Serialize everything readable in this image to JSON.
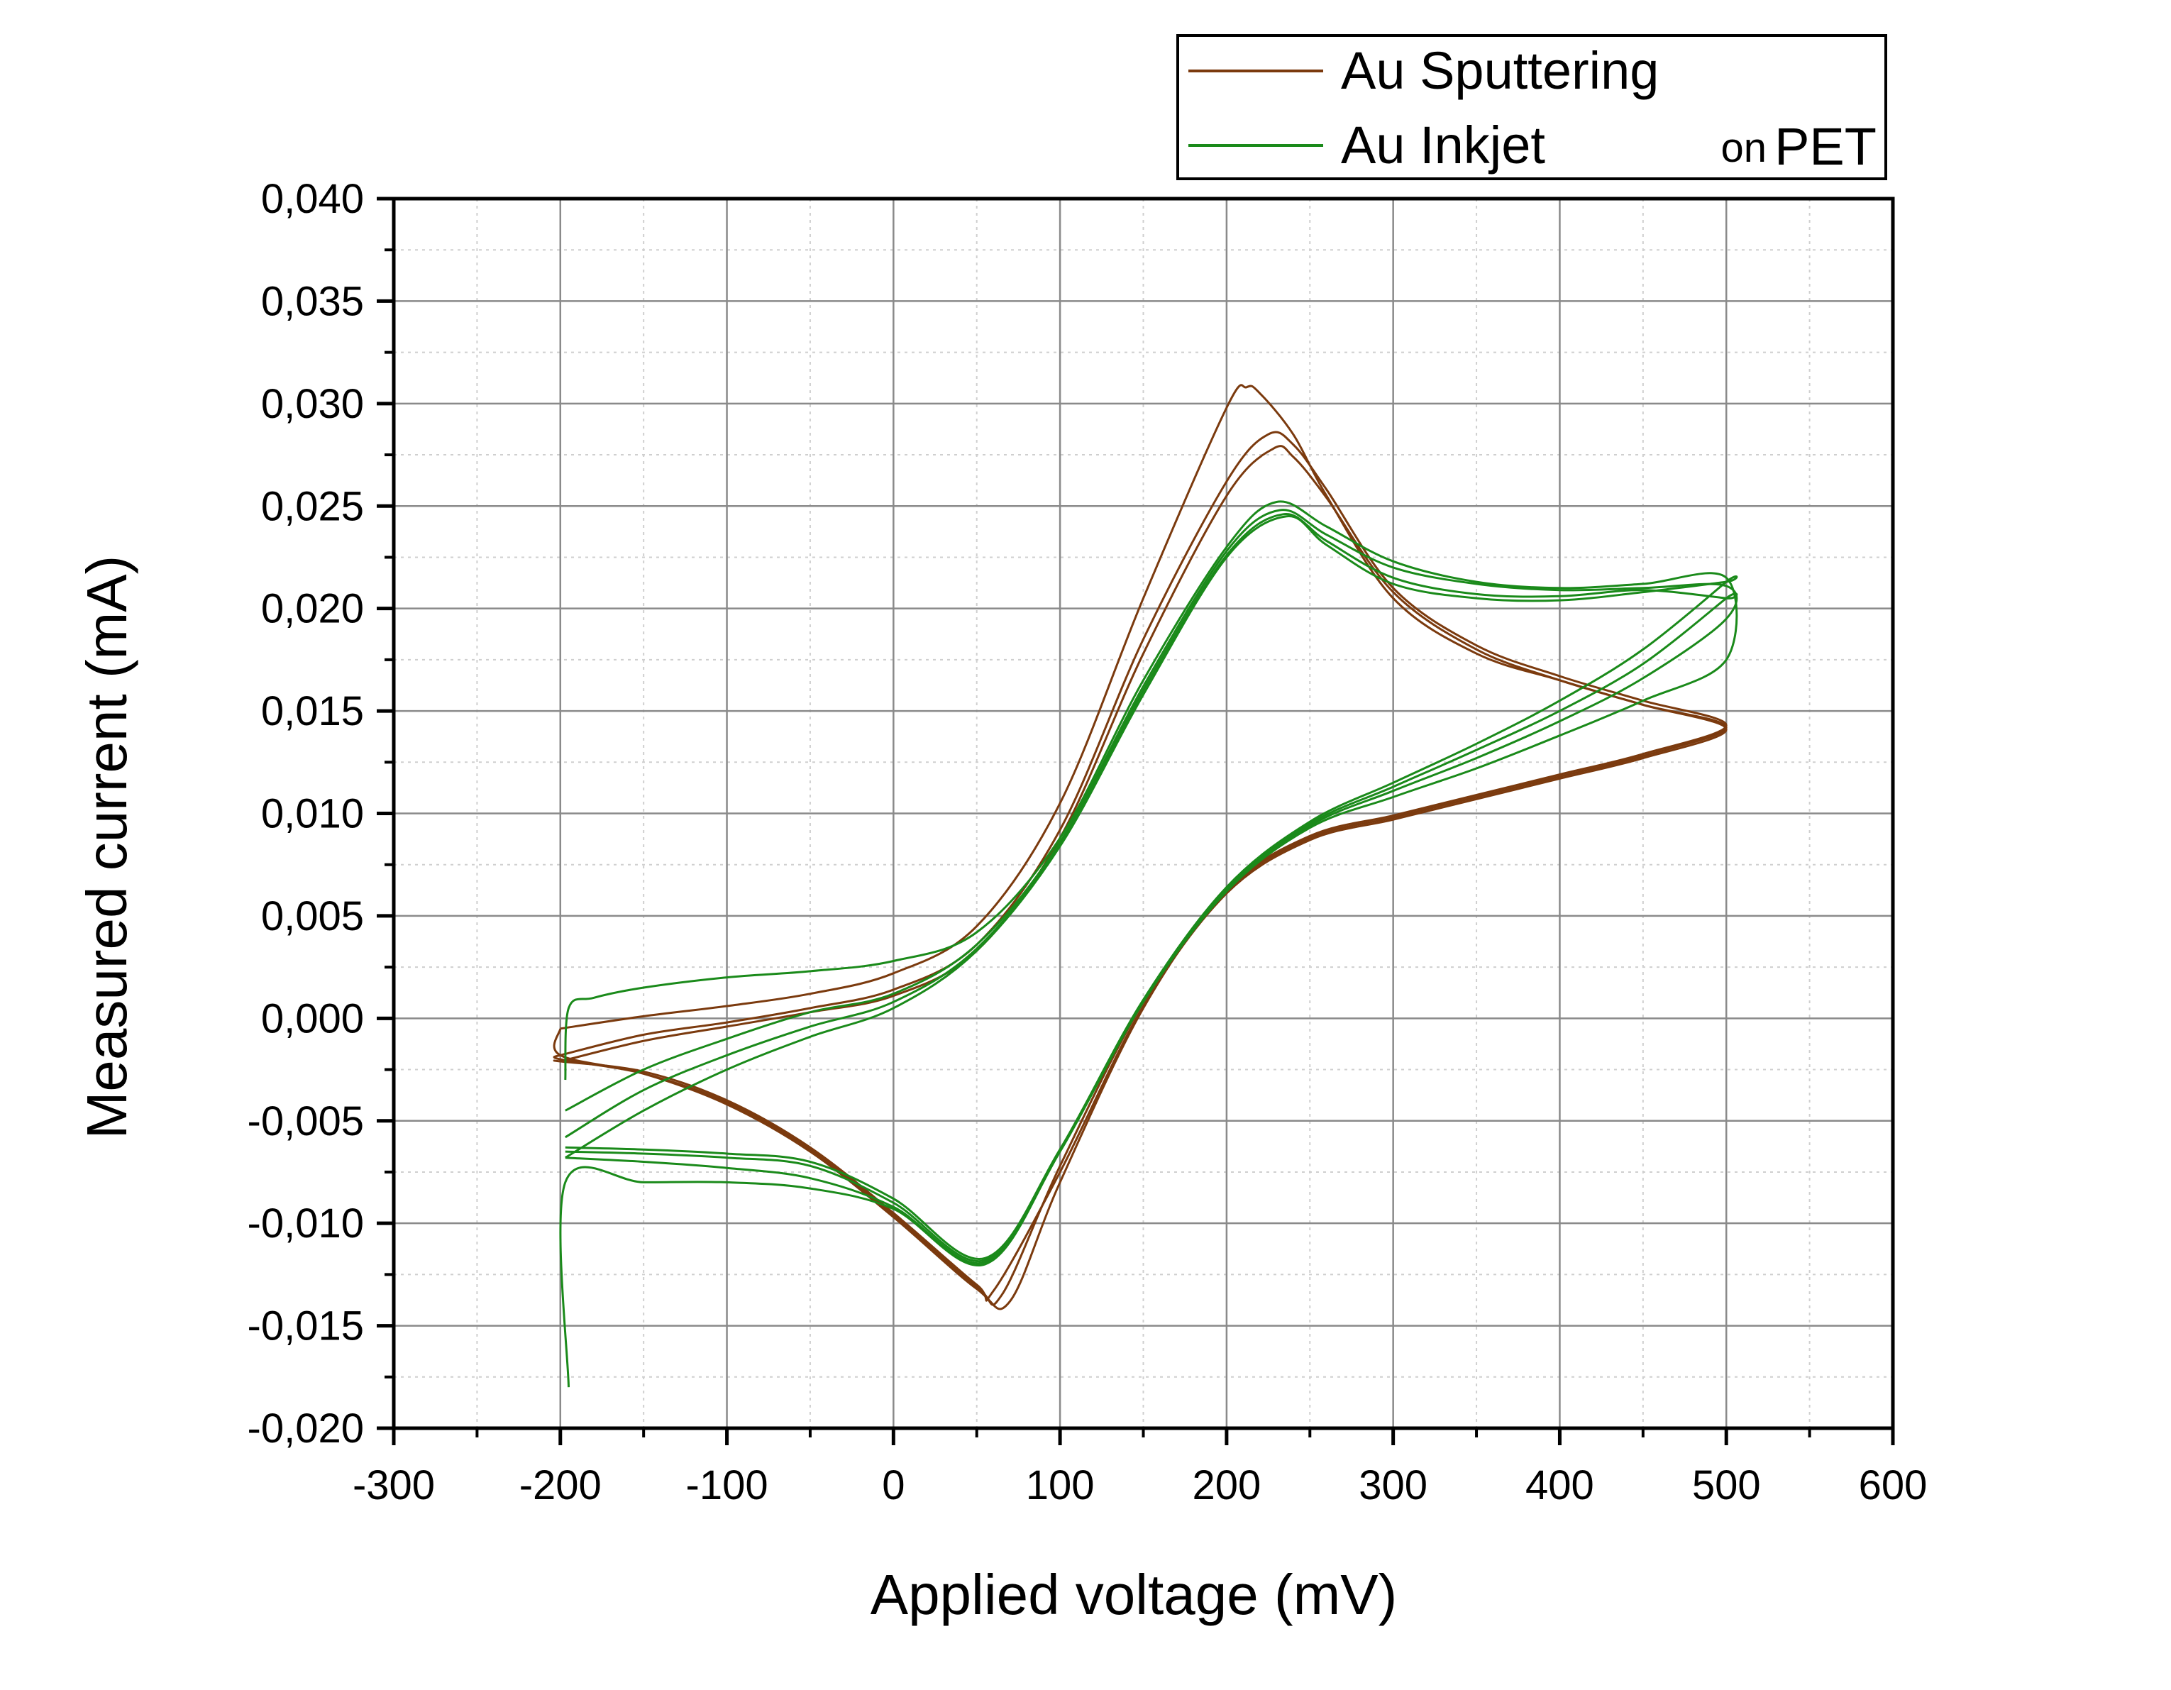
{
  "chart_data": {
    "type": "line",
    "xlabel": "Applied voltage (mV)",
    "ylabel": "Measured current (mA)",
    "xlim": [
      -300,
      600
    ],
    "ylim": [
      -0.02,
      0.04
    ],
    "x_ticks": [
      -300,
      -200,
      -100,
      0,
      100,
      200,
      300,
      400,
      500,
      600
    ],
    "x_tick_labels": [
      "-300",
      "-200",
      "-100",
      "0",
      "100",
      "200",
      "300",
      "400",
      "500",
      "600"
    ],
    "y_ticks": [
      -0.02,
      -0.015,
      -0.01,
      -0.005,
      0,
      0.005,
      0.01,
      0.015,
      0.02,
      0.025,
      0.03,
      0.035,
      0.04
    ],
    "y_tick_labels": [
      "-0,020",
      "-0,015",
      "-0,010",
      "-0,005",
      "0,000",
      "0,005",
      "0,010",
      "0,015",
      "0,020",
      "0,025",
      "0,030",
      "0,035",
      "0,040"
    ],
    "grid": true,
    "legend_position": "top-right",
    "legend_suffix": "on PET",
    "series": [
      {
        "name": "Au Sputtering",
        "color": "#7b3a0e",
        "cycles": [
          {
            "x": [
              -200,
              -150,
              -100,
              -50,
              0,
              50,
              100,
              150,
              200,
              212,
              220,
              240,
              260,
              300,
              350,
              400,
              450,
              500,
              450,
              400,
              350,
              300,
              250,
              200,
              150,
              100,
              70,
              50,
              0,
              -50,
              -100,
              -150,
              -200,
              -200
            ],
            "y": [
              -0.0005,
              0.0001,
              0.0006,
              0.0012,
              0.0022,
              0.0045,
              0.0105,
              0.0205,
              0.0298,
              0.0308,
              0.0305,
              0.0285,
              0.0255,
              0.0205,
              0.0178,
              0.0165,
              0.0153,
              0.0142,
              0.0128,
              0.0118,
              0.0108,
              0.0098,
              0.0088,
              0.0062,
              0.0005,
              -0.008,
              -0.0138,
              -0.0132,
              -0.0097,
              -0.0065,
              -0.0042,
              -0.0027,
              -0.0018,
              -0.0005
            ]
          },
          {
            "x": [
              -200,
              -150,
              -100,
              -50,
              0,
              50,
              100,
              150,
              200,
              225,
              240,
              260,
              300,
              350,
              400,
              450,
              500,
              450,
              400,
              350,
              300,
              250,
              200,
              150,
              100,
              65,
              50,
              0,
              -50,
              -100,
              -150,
              -200,
              -200
            ],
            "y": [
              -0.0018,
              -0.0008,
              -0.0002,
              0.0005,
              0.0014,
              0.0036,
              0.0092,
              0.0185,
              0.0262,
              0.0285,
              0.028,
              0.0258,
              0.021,
              0.0182,
              0.0167,
              0.0155,
              0.0143,
              0.0129,
              0.0119,
              0.0109,
              0.0099,
              0.0089,
              0.0063,
              0.0008,
              -0.0072,
              -0.0135,
              -0.0131,
              -0.0096,
              -0.0064,
              -0.0041,
              -0.0027,
              -0.002,
              -0.0018
            ]
          },
          {
            "x": [
              -200,
              -150,
              -100,
              -50,
              0,
              50,
              100,
              150,
              200,
              228,
              240,
              260,
              300,
              350,
              400,
              450,
              500,
              450,
              400,
              350,
              300,
              250,
              200,
              150,
              100,
              60,
              50,
              0,
              -50,
              -100,
              -150,
              -200,
              -200
            ],
            "y": [
              -0.0021,
              -0.0011,
              -0.0004,
              0.0003,
              0.0011,
              0.0033,
              0.0088,
              0.0178,
              0.0255,
              0.0278,
              0.0274,
              0.0254,
              0.0208,
              0.018,
              0.0165,
              0.0153,
              0.0141,
              0.0127,
              0.0117,
              0.0107,
              0.0097,
              0.0087,
              0.0061,
              0.0006,
              -0.0075,
              -0.0133,
              -0.013,
              -0.0095,
              -0.0063,
              -0.004,
              -0.0026,
              -0.0021,
              -0.0021
            ]
          }
        ]
      },
      {
        "name": "Au Inkjet",
        "color": "#1a8a1a",
        "cycles": [
          {
            "x": [
              -197,
              -195,
              -180,
              -150,
              -100,
              -50,
              0,
              50,
              100,
              150,
              200,
              230,
              260,
              300,
              350,
              400,
              450,
              500,
              500,
              450,
              400,
              350,
              300,
              250,
              200,
              150,
              100,
              55,
              0,
              -50,
              -100,
              -150,
              -197,
              -195
            ],
            "y": [
              -0.003,
              0.0005,
              0.001,
              0.0015,
              0.002,
              0.0023,
              0.0028,
              0.0042,
              0.0088,
              0.0165,
              0.023,
              0.0252,
              0.024,
              0.0223,
              0.0213,
              0.021,
              0.0212,
              0.0215,
              0.0175,
              0.0155,
              0.0138,
              0.0122,
              0.0108,
              0.0093,
              0.0062,
              0.0008,
              -0.0065,
              -0.012,
              -0.0093,
              -0.0083,
              -0.008,
              -0.008,
              -0.008,
              -0.018
            ]
          },
          {
            "x": [
              -197,
              -150,
              -100,
              -50,
              0,
              50,
              100,
              150,
              200,
              232,
              260,
              300,
              350,
              400,
              450,
              500,
              500,
              450,
              400,
              350,
              300,
              250,
              200,
              150,
              100,
              55,
              0,
              -50,
              -100,
              -150,
              -197
            ],
            "y": [
              -0.0045,
              -0.0025,
              -0.001,
              0.0003,
              0.0012,
              0.0036,
              0.0086,
              0.0162,
              0.0228,
              0.0248,
              0.0236,
              0.022,
              0.0212,
              0.0209,
              0.021,
              0.0211,
              0.0195,
              0.0166,
              0.0145,
              0.0127,
              0.0111,
              0.0094,
              0.0063,
              0.0009,
              -0.0064,
              -0.0119,
              -0.0092,
              -0.0078,
              -0.0073,
              -0.007,
              -0.0068
            ]
          },
          {
            "x": [
              -197,
              -150,
              -100,
              -50,
              0,
              50,
              100,
              150,
              200,
              234,
              260,
              300,
              350,
              400,
              450,
              500,
              500,
              450,
              400,
              350,
              300,
              250,
              200,
              150,
              100,
              55,
              0,
              -50,
              -100,
              -150,
              -197
            ],
            "y": [
              -0.0058,
              -0.0035,
              -0.0018,
              -0.0004,
              0.0008,
              0.0034,
              0.0085,
              0.016,
              0.0226,
              0.0246,
              0.0233,
              0.0215,
              0.0207,
              0.0206,
              0.0209,
              0.0205,
              0.0205,
              0.0173,
              0.015,
              0.0131,
              0.0113,
              0.0095,
              0.0064,
              0.0009,
              -0.0064,
              -0.0118,
              -0.009,
              -0.0072,
              -0.0068,
              -0.0066,
              -0.0065
            ]
          },
          {
            "x": [
              -197,
              -150,
              -100,
              -50,
              0,
              50,
              100,
              150,
              200,
              236,
              260,
              300,
              350,
              400,
              450,
              500,
              500,
              450,
              400,
              350,
              300,
              250,
              200,
              150,
              100,
              55,
              0,
              -50,
              -100,
              -150,
              -197
            ],
            "y": [
              -0.0068,
              -0.0045,
              -0.0025,
              -0.0009,
              0.0005,
              0.0033,
              0.0084,
              0.0158,
              0.0225,
              0.0245,
              0.0231,
              0.0212,
              0.0205,
              0.0204,
              0.0208,
              0.0213,
              0.0213,
              0.018,
              0.0155,
              0.0134,
              0.0115,
              0.0096,
              0.0064,
              0.0009,
              -0.0064,
              -0.0117,
              -0.0088,
              -0.007,
              -0.0066,
              -0.0064,
              -0.0063
            ]
          }
        ]
      }
    ]
  }
}
